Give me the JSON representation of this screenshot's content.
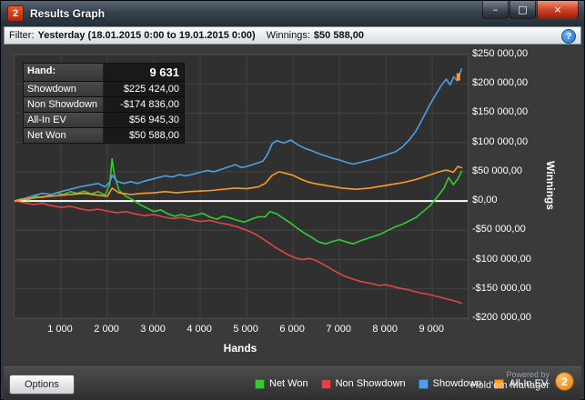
{
  "window": {
    "title": "Results Graph",
    "icon_text": "2",
    "controls": {
      "minimize": "–",
      "maximize": "□",
      "close": "×"
    }
  },
  "filter_bar": {
    "label": "Filter:",
    "range": "Yesterday (18.01.2015 0:00 to 19.01.2015 0:00)",
    "winnings_label": "Winnings:",
    "winnings_value": "$50 588,00",
    "help": "?"
  },
  "info_box": {
    "rows": [
      {
        "label": "Hand:",
        "value": "9 631",
        "emphasis": true
      },
      {
        "label": "Showdown",
        "value": "$225 424,00"
      },
      {
        "label": "Non Showdown",
        "value": "-$174 836,00"
      },
      {
        "label": "All-In EV",
        "value": "$56 945,30"
      },
      {
        "label": "Net Won",
        "value": "$50 588,00"
      }
    ]
  },
  "axes": {
    "x_label": "Hands",
    "y_label": "Winnings",
    "y_ticks": [
      {
        "value": 250000,
        "label": "$250 000,00"
      },
      {
        "value": 200000,
        "label": "$200 000,00"
      },
      {
        "value": 150000,
        "label": "$150 000,00"
      },
      {
        "value": 100000,
        "label": "$100 000,00"
      },
      {
        "value": 50000,
        "label": "$50 000,00"
      },
      {
        "value": 0,
        "label": "$0,00"
      },
      {
        "value": -50000,
        "label": "-$50 000,00"
      },
      {
        "value": -100000,
        "label": "-$100 000,00"
      },
      {
        "value": -150000,
        "label": "-$150 000,00"
      },
      {
        "value": -200000,
        "label": "-$200 000,00"
      }
    ],
    "x_ticks": [
      {
        "value": 1000,
        "label": "1 000"
      },
      {
        "value": 2000,
        "label": "2 000"
      },
      {
        "value": 3000,
        "label": "3 000"
      },
      {
        "value": 4000,
        "label": "4 000"
      },
      {
        "value": 5000,
        "label": "5 000"
      },
      {
        "value": 6000,
        "label": "6 000"
      },
      {
        "value": 7000,
        "label": "7 000"
      },
      {
        "value": 8000,
        "label": "8 000"
      },
      {
        "value": 9000,
        "label": "9 000"
      }
    ]
  },
  "legend": [
    {
      "label": "Net Won",
      "color": "#33cc33"
    },
    {
      "label": "Non Showdown",
      "color": "#e04545"
    },
    {
      "label": "Showdown",
      "color": "#4da0e8"
    },
    {
      "label": "All-In EV",
      "color": "#ff9a20"
    }
  ],
  "footer": {
    "options_label": "Options",
    "powered_by": "Powered by",
    "brand": "Hold'em Manager",
    "brand_badge": "2"
  },
  "chart_data": {
    "type": "line",
    "title": "Results Graph",
    "xlabel": "Hands",
    "ylabel": "Winnings",
    "xlim": [
      0,
      9760
    ],
    "ylim": [
      -200000,
      250000
    ],
    "grid": true,
    "legend_position": "bottom",
    "x_gridlines": [
      1000,
      2000,
      3000,
      4000,
      5000,
      6000,
      7000,
      8000,
      9000
    ],
    "y_gridlines": [
      -200000,
      -150000,
      -100000,
      -50000,
      0,
      50000,
      100000,
      150000,
      200000,
      250000
    ],
    "zero_line_color": "#ffffff",
    "grid_color": "#434343",
    "plot_bg": "#303030",
    "final_values": {
      "hands": 9631,
      "showdown": 225424.0,
      "non_showdown": -174836.0,
      "all_in_ev": 56945.3,
      "net_won": 50588.0
    },
    "end_marker": {
      "x": 9560,
      "y": 212000,
      "color": "#ff9a20"
    },
    "series": [
      {
        "name": "Non Showdown",
        "color": "#e04545",
        "points": [
          [
            0,
            0
          ],
          [
            200,
            -3000
          ],
          [
            400,
            -6000
          ],
          [
            600,
            -4000
          ],
          [
            800,
            -8000
          ],
          [
            1000,
            -11000
          ],
          [
            1200,
            -9000
          ],
          [
            1400,
            -13000
          ],
          [
            1600,
            -16000
          ],
          [
            1800,
            -14000
          ],
          [
            2000,
            -17000
          ],
          [
            2200,
            -20000
          ],
          [
            2400,
            -18000
          ],
          [
            2600,
            -22000
          ],
          [
            2800,
            -25000
          ],
          [
            3000,
            -23000
          ],
          [
            3200,
            -27000
          ],
          [
            3400,
            -30000
          ],
          [
            3600,
            -28000
          ],
          [
            3800,
            -32000
          ],
          [
            4000,
            -35000
          ],
          [
            4200,
            -33000
          ],
          [
            4400,
            -37000
          ],
          [
            4600,
            -40000
          ],
          [
            4800,
            -44000
          ],
          [
            5000,
            -50000
          ],
          [
            5150,
            -55000
          ],
          [
            5300,
            -62000
          ],
          [
            5450,
            -70000
          ],
          [
            5600,
            -78000
          ],
          [
            5750,
            -85000
          ],
          [
            5900,
            -92000
          ],
          [
            6050,
            -97000
          ],
          [
            6200,
            -100000
          ],
          [
            6350,
            -98000
          ],
          [
            6500,
            -102000
          ],
          [
            6650,
            -108000
          ],
          [
            6800,
            -115000
          ],
          [
            6950,
            -122000
          ],
          [
            7100,
            -128000
          ],
          [
            7250,
            -132000
          ],
          [
            7400,
            -136000
          ],
          [
            7550,
            -139000
          ],
          [
            7700,
            -141000
          ],
          [
            7850,
            -144000
          ],
          [
            8000,
            -143000
          ],
          [
            8150,
            -146000
          ],
          [
            8300,
            -149000
          ],
          [
            8450,
            -151000
          ],
          [
            8600,
            -154000
          ],
          [
            8750,
            -157000
          ],
          [
            8900,
            -159000
          ],
          [
            9050,
            -162000
          ],
          [
            9200,
            -165000
          ],
          [
            9350,
            -168000
          ],
          [
            9500,
            -171000
          ],
          [
            9631,
            -174836
          ]
        ]
      },
      {
        "name": "Net Won",
        "color": "#33cc33",
        "points": [
          [
            0,
            0
          ],
          [
            150,
            4000
          ],
          [
            300,
            2000
          ],
          [
            450,
            8000
          ],
          [
            600,
            6000
          ],
          [
            750,
            10000
          ],
          [
            900,
            14000
          ],
          [
            1050,
            11000
          ],
          [
            1200,
            16000
          ],
          [
            1350,
            13000
          ],
          [
            1500,
            17000
          ],
          [
            1650,
            12000
          ],
          [
            1800,
            16000
          ],
          [
            1950,
            10000
          ],
          [
            2050,
            28000
          ],
          [
            2100,
            72000
          ],
          [
            2150,
            45000
          ],
          [
            2250,
            18000
          ],
          [
            2400,
            8000
          ],
          [
            2550,
            2000
          ],
          [
            2700,
            -6000
          ],
          [
            2850,
            -12000
          ],
          [
            3000,
            -18000
          ],
          [
            3150,
            -15000
          ],
          [
            3300,
            -22000
          ],
          [
            3450,
            -26000
          ],
          [
            3600,
            -23000
          ],
          [
            3750,
            -27000
          ],
          [
            3900,
            -24000
          ],
          [
            4050,
            -21000
          ],
          [
            4200,
            -27000
          ],
          [
            4350,
            -31000
          ],
          [
            4500,
            -26000
          ],
          [
            4650,
            -29000
          ],
          [
            4800,
            -33000
          ],
          [
            4950,
            -36000
          ],
          [
            5100,
            -31000
          ],
          [
            5250,
            -27000
          ],
          [
            5400,
            -27000
          ],
          [
            5500,
            -18000
          ],
          [
            5650,
            -22000
          ],
          [
            5800,
            -30000
          ],
          [
            5950,
            -38000
          ],
          [
            6100,
            -47000
          ],
          [
            6250,
            -55000
          ],
          [
            6400,
            -62000
          ],
          [
            6550,
            -70000
          ],
          [
            6700,
            -73000
          ],
          [
            6850,
            -69000
          ],
          [
            7000,
            -66000
          ],
          [
            7150,
            -70000
          ],
          [
            7300,
            -73000
          ],
          [
            7450,
            -68000
          ],
          [
            7600,
            -64000
          ],
          [
            7750,
            -60000
          ],
          [
            7900,
            -56000
          ],
          [
            8050,
            -50000
          ],
          [
            8200,
            -44000
          ],
          [
            8350,
            -40000
          ],
          [
            8500,
            -34000
          ],
          [
            8650,
            -28000
          ],
          [
            8800,
            -18000
          ],
          [
            8950,
            -8000
          ],
          [
            9100,
            6000
          ],
          [
            9250,
            22000
          ],
          [
            9350,
            40000
          ],
          [
            9450,
            28000
          ],
          [
            9550,
            38000
          ],
          [
            9631,
            50588
          ]
        ]
      },
      {
        "name": "Showdown",
        "color": "#4da0e8",
        "points": [
          [
            0,
            0
          ],
          [
            200,
            4000
          ],
          [
            400,
            9000
          ],
          [
            600,
            13000
          ],
          [
            800,
            11000
          ],
          [
            1000,
            16000
          ],
          [
            1200,
            20000
          ],
          [
            1400,
            24000
          ],
          [
            1600,
            27000
          ],
          [
            1800,
            30000
          ],
          [
            1950,
            24000
          ],
          [
            2050,
            32000
          ],
          [
            2100,
            44000
          ],
          [
            2200,
            34000
          ],
          [
            2350,
            30000
          ],
          [
            2500,
            33000
          ],
          [
            2650,
            30000
          ],
          [
            2800,
            34000
          ],
          [
            2950,
            37000
          ],
          [
            3100,
            40000
          ],
          [
            3250,
            43000
          ],
          [
            3400,
            41000
          ],
          [
            3550,
            45000
          ],
          [
            3700,
            43000
          ],
          [
            3850,
            46000
          ],
          [
            4000,
            49000
          ],
          [
            4150,
            52000
          ],
          [
            4300,
            50000
          ],
          [
            4450,
            54000
          ],
          [
            4600,
            58000
          ],
          [
            4750,
            62000
          ],
          [
            4900,
            57000
          ],
          [
            5050,
            60000
          ],
          [
            5200,
            64000
          ],
          [
            5350,
            68000
          ],
          [
            5450,
            80000
          ],
          [
            5550,
            98000
          ],
          [
            5650,
            103000
          ],
          [
            5800,
            99000
          ],
          [
            5950,
            104000
          ],
          [
            6100,
            96000
          ],
          [
            6250,
            90000
          ],
          [
            6400,
            86000
          ],
          [
            6550,
            81000
          ],
          [
            6700,
            77000
          ],
          [
            6850,
            73000
          ],
          [
            7000,
            70000
          ],
          [
            7150,
            66000
          ],
          [
            7300,
            63000
          ],
          [
            7450,
            66000
          ],
          [
            7600,
            69000
          ],
          [
            7750,
            72000
          ],
          [
            7900,
            76000
          ],
          [
            8050,
            80000
          ],
          [
            8200,
            84000
          ],
          [
            8350,
            92000
          ],
          [
            8500,
            104000
          ],
          [
            8650,
            120000
          ],
          [
            8800,
            142000
          ],
          [
            8950,
            165000
          ],
          [
            9100,
            185000
          ],
          [
            9200,
            198000
          ],
          [
            9300,
            208000
          ],
          [
            9380,
            198000
          ],
          [
            9460,
            212000
          ],
          [
            9540,
            205000
          ],
          [
            9631,
            225424
          ]
        ]
      },
      {
        "name": "All-In EV",
        "color": "#ff9a20",
        "points": [
          [
            0,
            0
          ],
          [
            300,
            4000
          ],
          [
            600,
            7000
          ],
          [
            900,
            9000
          ],
          [
            1200,
            11000
          ],
          [
            1500,
            13000
          ],
          [
            1800,
            10000
          ],
          [
            2000,
            8000
          ],
          [
            2100,
            22000
          ],
          [
            2250,
            14000
          ],
          [
            2500,
            11000
          ],
          [
            2750,
            13000
          ],
          [
            3000,
            14000
          ],
          [
            3250,
            16000
          ],
          [
            3500,
            14000
          ],
          [
            3750,
            16000
          ],
          [
            4000,
            17000
          ],
          [
            4250,
            18000
          ],
          [
            4500,
            20000
          ],
          [
            4750,
            22000
          ],
          [
            5000,
            21000
          ],
          [
            5250,
            24000
          ],
          [
            5400,
            30000
          ],
          [
            5550,
            44000
          ],
          [
            5700,
            50000
          ],
          [
            5850,
            47000
          ],
          [
            6000,
            44000
          ],
          [
            6150,
            38000
          ],
          [
            6300,
            33000
          ],
          [
            6450,
            30000
          ],
          [
            6600,
            28000
          ],
          [
            6750,
            26000
          ],
          [
            6900,
            24000
          ],
          [
            7050,
            22000
          ],
          [
            7200,
            21000
          ],
          [
            7350,
            20000
          ],
          [
            7500,
            21000
          ],
          [
            7650,
            22000
          ],
          [
            7800,
            24000
          ],
          [
            7950,
            26000
          ],
          [
            8100,
            28000
          ],
          [
            8250,
            30000
          ],
          [
            8400,
            32000
          ],
          [
            8550,
            35000
          ],
          [
            8700,
            38000
          ],
          [
            8850,
            42000
          ],
          [
            9000,
            46000
          ],
          [
            9150,
            50000
          ],
          [
            9300,
            53000
          ],
          [
            9450,
            49000
          ],
          [
            9550,
            59000
          ],
          [
            9631,
            56945
          ]
        ]
      }
    ]
  }
}
